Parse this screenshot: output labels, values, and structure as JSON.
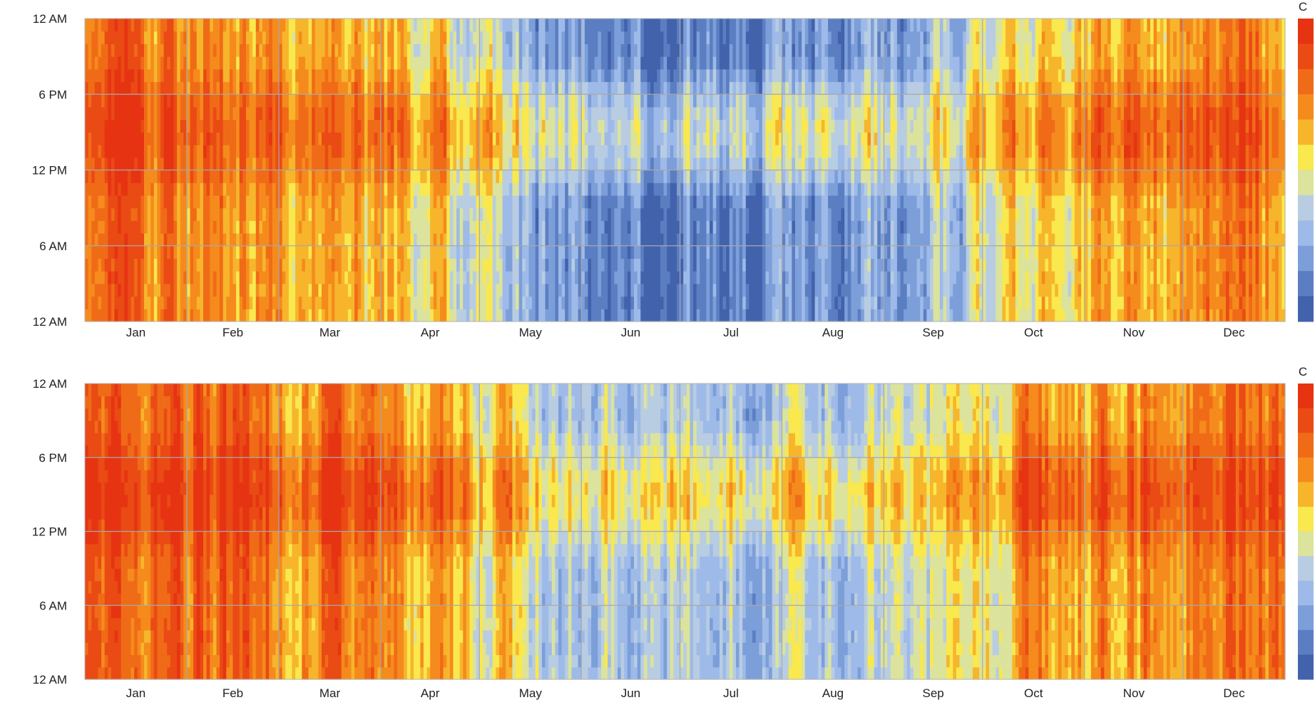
{
  "chart_data": [
    {
      "type": "heatmap",
      "title": "",
      "xlabel": "",
      "ylabel": "",
      "colorbar_label": "C",
      "x_tick_labels": [
        "Jan",
        "Feb",
        "Mar",
        "Apr",
        "May",
        "Jun",
        "Jul",
        "Aug",
        "Sep",
        "Oct",
        "Nov",
        "Dec"
      ],
      "y_tick_labels": [
        "12 AM",
        "6 AM",
        "12 PM",
        "6 PM",
        "12 AM"
      ],
      "x_range_days": [
        1,
        365
      ],
      "y_range_hours": [
        0,
        24
      ],
      "grid": true,
      "colorbar_colors": [
        "#e63412",
        "#ea4a14",
        "#f06b17",
        "#f58b1c",
        "#f7b52c",
        "#f9e84e",
        "#dbe39c",
        "#b8cde2",
        "#9ebae8",
        "#7c9ed9",
        "#5b7ec2",
        "#4262ac"
      ],
      "monthly_level_night": [
        0.72,
        0.74,
        0.64,
        0.52,
        0.22,
        0.1,
        0.12,
        0.18,
        0.3,
        0.56,
        0.62,
        0.72
      ],
      "monthly_level_day": [
        0.84,
        0.86,
        0.8,
        0.7,
        0.46,
        0.36,
        0.4,
        0.46,
        0.5,
        0.74,
        0.8,
        0.84
      ]
    },
    {
      "type": "heatmap",
      "title": "",
      "xlabel": "",
      "ylabel": "",
      "colorbar_label": "C",
      "x_tick_labels": [
        "Jan",
        "Feb",
        "Mar",
        "Apr",
        "May",
        "Jun",
        "Jul",
        "Aug",
        "Sep",
        "Oct",
        "Nov",
        "Dec"
      ],
      "y_tick_labels": [
        "12 AM",
        "6 AM",
        "12 PM",
        "6 PM",
        "12 AM"
      ],
      "x_range_days": [
        1,
        365
      ],
      "y_range_hours": [
        0,
        24
      ],
      "grid": true,
      "colorbar_colors": [
        "#e63412",
        "#ea4a14",
        "#f06b17",
        "#f58b1c",
        "#f7b52c",
        "#f9e84e",
        "#dbe39c",
        "#b8cde2",
        "#9ebae8",
        "#7c9ed9",
        "#5b7ec2",
        "#4262ac"
      ],
      "monthly_level_night": [
        0.8,
        0.82,
        0.74,
        0.64,
        0.4,
        0.32,
        0.34,
        0.38,
        0.46,
        0.66,
        0.72,
        0.8
      ],
      "monthly_level_day": [
        0.92,
        0.94,
        0.9,
        0.8,
        0.58,
        0.52,
        0.56,
        0.6,
        0.62,
        0.84,
        0.88,
        0.92
      ]
    }
  ]
}
